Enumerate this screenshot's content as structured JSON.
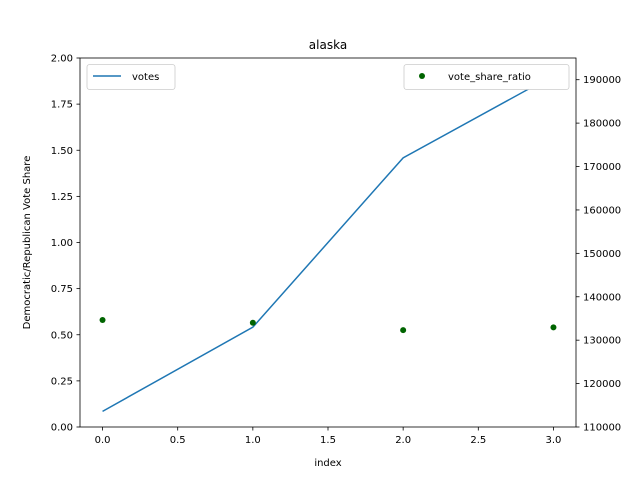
{
  "chart_data": {
    "type": "line",
    "title": "alaska",
    "xlabel": "index",
    "ylabel_left": "Democratic/Republican Vote Share",
    "ylabel_right": "",
    "xlim": [
      -0.15,
      3.15
    ],
    "ylim_left": [
      0,
      2.0
    ],
    "ylim_right": [
      110000,
      195000
    ],
    "x_ticks": [
      0.0,
      0.5,
      1.0,
      1.5,
      2.0,
      2.5,
      3.0
    ],
    "x_tick_labels": [
      "0.0",
      "0.5",
      "1.0",
      "1.5",
      "2.0",
      "2.5",
      "3.0"
    ],
    "y_left_ticks": [
      0.0,
      0.25,
      0.5,
      0.75,
      1.0,
      1.25,
      1.5,
      1.75,
      2.0
    ],
    "y_left_tick_labels": [
      "0.00",
      "0.25",
      "0.50",
      "0.75",
      "1.00",
      "1.25",
      "1.50",
      "1.75",
      "2.00"
    ],
    "y_right_ticks": [
      110000,
      120000,
      130000,
      140000,
      150000,
      160000,
      170000,
      180000,
      190000
    ],
    "y_right_tick_labels": [
      "110000",
      "120000",
      "130000",
      "140000",
      "150000",
      "160000",
      "170000",
      "180000",
      "190000"
    ],
    "grid": false,
    "series": [
      {
        "name": "votes",
        "kind": "line",
        "axis": "right",
        "color": "#1f77b4",
        "x": [
          0,
          1,
          2,
          3
        ],
        "values": [
          113600,
          133000,
          172000,
          191000
        ],
        "legend_position": "upper-left"
      },
      {
        "name": "vote_share_ratio",
        "kind": "scatter",
        "axis": "left",
        "color": "#006400",
        "x": [
          0,
          1,
          2,
          3
        ],
        "values": [
          0.58,
          0.565,
          0.525,
          0.54
        ],
        "legend_position": "upper-right"
      }
    ]
  }
}
